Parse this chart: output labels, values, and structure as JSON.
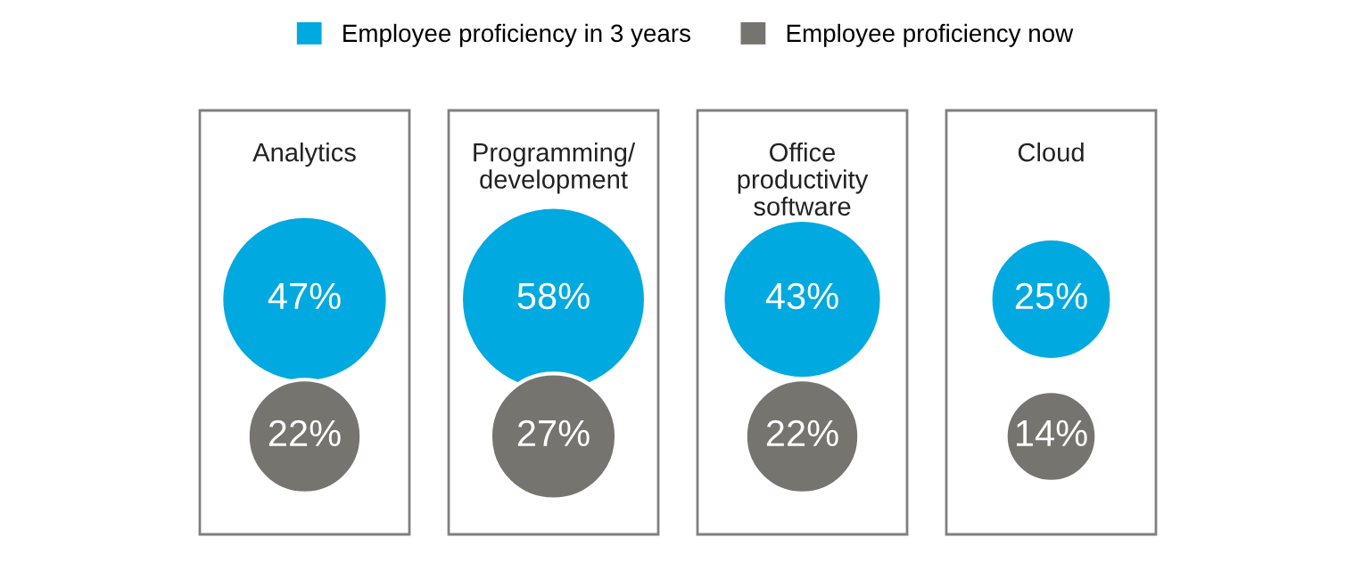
{
  "chart_data": {
    "type": "other",
    "categories": [
      "Analytics",
      "Programming/\ndevelopment",
      "Office\nproductivity\nsoftware",
      "Cloud"
    ],
    "legend": "top",
    "series": [
      {
        "name": "Employee proficiency in 3 years",
        "color": "#00a9e0",
        "values": [
          47,
          58,
          43,
          25
        ],
        "value_labels": [
          "47%",
          "58%",
          "43%",
          "25%"
        ]
      },
      {
        "name": "Employee proficiency now",
        "color": "#76746f",
        "values": [
          22,
          27,
          22,
          14
        ],
        "value_labels": [
          "22%",
          "27%",
          "22%",
          "14%"
        ]
      }
    ]
  }
}
